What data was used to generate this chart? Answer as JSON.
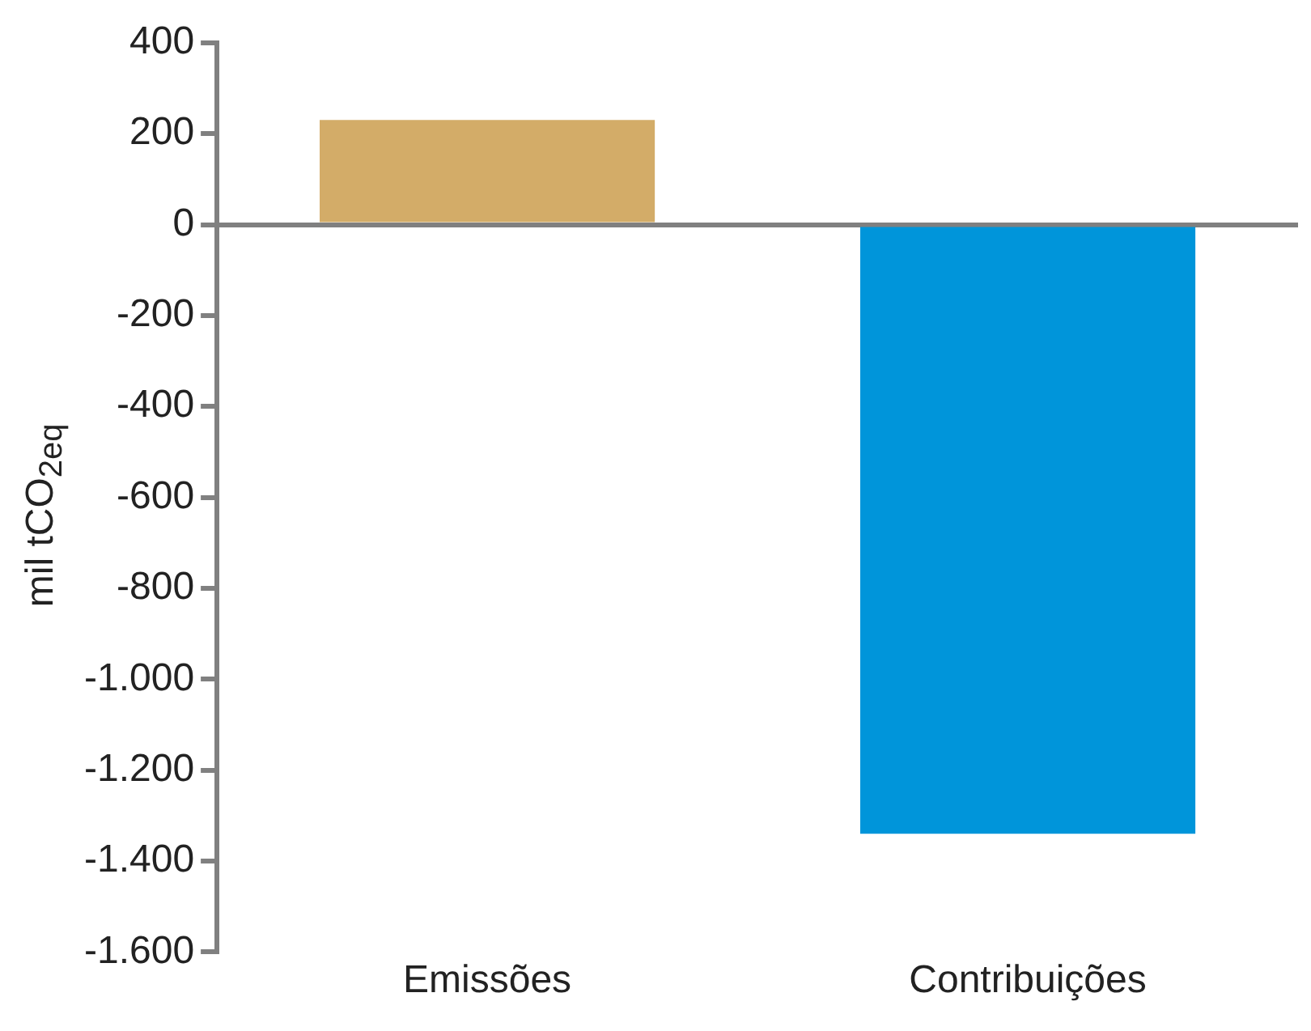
{
  "chart_data": {
    "type": "bar",
    "ylabel": "mil tCO$_{2eq}$",
    "categories": [
      "Emissões",
      "Contribuições"
    ],
    "values": [
      230,
      -1340
    ],
    "colors": [
      "#d3ac68",
      "#0095da"
    ],
    "ylim": [
      -1600,
      400
    ],
    "yticks": [
      {
        "value": -1600,
        "label": "-1.600"
      },
      {
        "value": -1400,
        "label": "-1.400"
      },
      {
        "value": -1200,
        "label": "-1.200"
      },
      {
        "value": -1000,
        "label": "-1.000"
      },
      -800,
      -600,
      -400,
      -200,
      0,
      200,
      400
    ]
  }
}
